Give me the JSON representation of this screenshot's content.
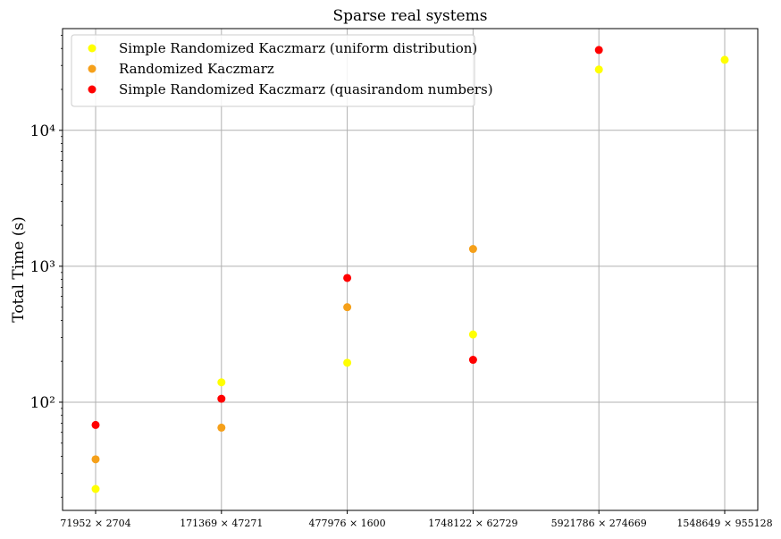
{
  "chart_data": {
    "type": "scatter",
    "title": "Sparse real systems",
    "xlabel": "",
    "ylabel": "Total Time (s)",
    "yscale": "log",
    "ylim": [
      16,
      56000
    ],
    "grid": true,
    "legend_position": "top-left",
    "categories": [
      "71952 × 2704",
      "171369 × 47271",
      "477976 × 1600",
      "1748122 × 62729",
      "5921786 × 274669",
      "1548649 × 955128"
    ],
    "y_ticks": [
      {
        "value": 100,
        "label": "10²"
      },
      {
        "value": 1000,
        "label": "10³"
      },
      {
        "value": 10000,
        "label": "10⁴"
      }
    ],
    "series": [
      {
        "name": "Simple Randomized Kaczmarz (uniform distribution)",
        "color": "#ffff00",
        "values": [
          23,
          140,
          195,
          315,
          28000,
          33000
        ]
      },
      {
        "name": "Randomized Kaczmarz",
        "color": "#f5a01a",
        "values": [
          38,
          65,
          500,
          1340,
          null,
          null
        ]
      },
      {
        "name": "Simple Randomized Kaczmarz (quasirandom numbers)",
        "color": "#ff0000",
        "values": [
          68,
          106,
          820,
          205,
          39000,
          null
        ]
      }
    ]
  }
}
